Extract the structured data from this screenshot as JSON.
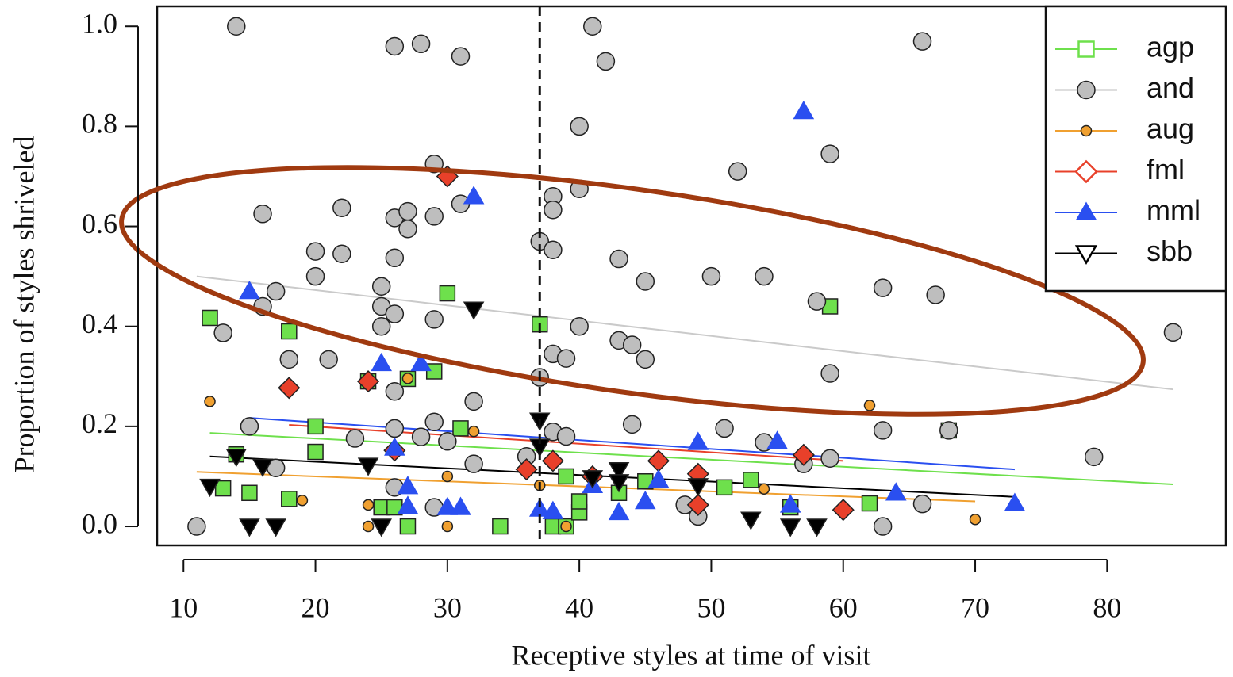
{
  "chart_data": {
    "type": "scatter",
    "x_label": "Receptive styles at time of visit",
    "y_label": "Proportion of styles shriveled",
    "xlim": [
      8,
      89
    ],
    "ylim": [
      -0.038,
      1.04
    ],
    "xticks": [
      10,
      20,
      30,
      40,
      50,
      60,
      70,
      80
    ],
    "yticks": [
      {
        "value": 0,
        "label": "0.0"
      },
      0.2,
      0.4,
      0.6,
      0.8,
      {
        "value": 1,
        "label": "1.0"
      }
    ],
    "reference_line_x": 37,
    "legend": "top-right",
    "series": [
      {
        "name": "agp",
        "color": "#6ee04c",
        "marker": "square",
        "x": [
          12,
          30,
          37,
          59,
          18,
          29,
          27,
          24,
          20,
          31,
          20,
          14,
          13,
          15,
          18,
          25,
          26,
          27,
          34,
          38,
          39,
          40,
          40,
          39,
          43,
          45,
          51,
          53,
          56,
          62,
          68
        ],
        "values": [
          0.417,
          0.466,
          0.404,
          0.44,
          0.39,
          0.31,
          0.295,
          0.29,
          0.2,
          0.196,
          0.149,
          0.144,
          0.076,
          0.067,
          0.055,
          0.038,
          0.038,
          0,
          0,
          0,
          0,
          0.028,
          0.05,
          0.1,
          0.067,
          0.09,
          0.078,
          0.093,
          0.038,
          0.046,
          0.192
        ],
        "fit": {
          "x": [
            12,
            85
          ],
          "y": [
            0.187,
            0.084
          ]
        }
      },
      {
        "name": "and",
        "color": "#bebebe",
        "marker": "circle",
        "x": [
          14,
          26,
          28,
          31,
          41,
          42,
          66,
          40,
          59,
          52,
          29,
          38,
          40,
          16,
          22,
          26,
          27,
          27,
          29,
          31,
          38,
          20,
          22,
          26,
          37,
          38,
          43,
          45,
          50,
          54,
          20,
          17,
          25,
          16,
          25,
          26,
          25,
          29,
          40,
          63,
          67,
          58,
          85,
          13,
          18,
          21,
          38,
          39,
          43,
          44,
          45,
          37,
          59,
          26,
          32,
          29,
          15,
          44,
          51,
          23,
          26,
          28,
          30,
          38,
          39,
          36,
          54,
          63,
          68,
          79,
          17,
          32,
          59,
          57,
          26,
          29,
          48,
          49,
          63,
          66,
          11
        ],
        "values": [
          1.0,
          0.96,
          0.965,
          0.94,
          1.0,
          0.93,
          0.97,
          0.8,
          0.745,
          0.71,
          0.725,
          0.66,
          0.675,
          0.625,
          0.637,
          0.617,
          0.63,
          0.595,
          0.62,
          0.645,
          0.633,
          0.55,
          0.545,
          0.537,
          0.57,
          0.553,
          0.535,
          0.49,
          0.5,
          0.5,
          0.5,
          0.47,
          0.48,
          0.44,
          0.44,
          0.425,
          0.4,
          0.414,
          0.4,
          0.477,
          0.463,
          0.45,
          0.388,
          0.387,
          0.334,
          0.334,
          0.345,
          0.336,
          0.372,
          0.363,
          0.334,
          0.298,
          0.306,
          0.27,
          0.25,
          0.209,
          0.2,
          0.204,
          0.196,
          0.176,
          0.196,
          0.179,
          0.17,
          0.189,
          0.18,
          0.14,
          0.168,
          0.192,
          0.192,
          0.139,
          0.117,
          0.125,
          0.136,
          0.125,
          0.078,
          0.038,
          0.043,
          0.02,
          0,
          0.045,
          0
        ],
        "fit": {
          "x": [
            11,
            85
          ],
          "y": [
            0.5,
            0.274
          ]
        }
      },
      {
        "name": "aug",
        "color": "#f0a030",
        "marker": "small-circle",
        "x": [
          12,
          27,
          32,
          30,
          19,
          24,
          24,
          30,
          37,
          39,
          54,
          62,
          70
        ],
        "values": [
          0.25,
          0.296,
          0.19,
          0.1,
          0.052,
          0.043,
          0,
          0,
          0.082,
          0,
          0.075,
          0.242,
          0.014
        ],
        "fit": {
          "x": [
            11,
            70
          ],
          "y": [
            0.109,
            0.05
          ]
        }
      },
      {
        "name": "fml",
        "color": "#e8402a",
        "marker": "diamond",
        "x": [
          30,
          18,
          24,
          26,
          36,
          38,
          41,
          46,
          49,
          49,
          57,
          60
        ],
        "values": [
          0.7,
          0.277,
          0.29,
          0.152,
          0.114,
          0.131,
          0.1,
          0.131,
          0.105,
          0.043,
          0.143,
          0.033
        ],
        "fit": {
          "x": [
            18,
            60
          ],
          "y": [
            0.203,
            0.131
          ]
        }
      },
      {
        "name": "mml",
        "color": "#2a4ff0",
        "marker": "triangle",
        "x": [
          57,
          32,
          15,
          25,
          28,
          26,
          27,
          27,
          30,
          31,
          37,
          38,
          41,
          43,
          45,
          46,
          49,
          55,
          56,
          64,
          73
        ],
        "values": [
          0.83,
          0.66,
          0.47,
          0.326,
          0.326,
          0.157,
          0.08,
          0.04,
          0.038,
          0.038,
          0.035,
          0.03,
          0.082,
          0.028,
          0.05,
          0.093,
          0.168,
          0.17,
          0.043,
          0.067,
          0.046
        ],
        "fit": {
          "x": [
            15,
            73
          ],
          "y": [
            0.217,
            0.114
          ]
        }
      },
      {
        "name": "sbb",
        "color": "#000000",
        "marker": "down-triangle",
        "x": [
          32,
          37,
          37,
          12,
          14,
          16,
          24,
          15,
          17,
          25,
          41,
          43,
          43,
          49,
          53,
          56,
          58
        ],
        "values": [
          0.434,
          0.212,
          0.16,
          0.08,
          0.14,
          0.12,
          0.122,
          0,
          0,
          0,
          0.097,
          0.113,
          0.089,
          0.081,
          0.014,
          0,
          0
        ],
        "fit": {
          "x": [
            12,
            73
          ],
          "y": [
            0.14,
            0.059
          ]
        }
      }
    ]
  }
}
